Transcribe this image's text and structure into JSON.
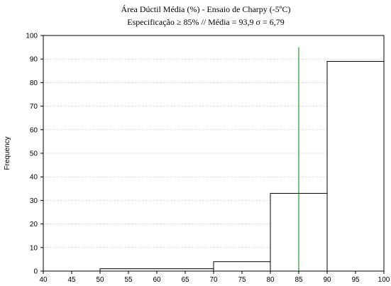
{
  "chart_data": {
    "type": "bar",
    "title": "Área Dúctil Média (%) - Ensaio de Charpy (-5ºC)",
    "subtitle": "Especificação ≥ 85% // Média = 93,9   σ = 6,79",
    "xlabel": "",
    "ylabel": "Frequency",
    "xlim": [
      40,
      100
    ],
    "ylim": [
      0,
      100
    ],
    "xticks": [
      40,
      45,
      50,
      55,
      60,
      65,
      70,
      75,
      80,
      85,
      90,
      95,
      100
    ],
    "yticks": [
      0,
      10,
      20,
      30,
      40,
      50,
      60,
      70,
      80,
      90,
      100
    ],
    "grid": true,
    "bins": [
      {
        "x0": 40,
        "x1": 50,
        "value": 0
      },
      {
        "x0": 50,
        "x1": 70,
        "value": 1
      },
      {
        "x0": 70,
        "x1": 80,
        "value": 4
      },
      {
        "x0": 80,
        "x1": 90,
        "value": 33
      },
      {
        "x0": 90,
        "x1": 100,
        "value": 89
      }
    ],
    "reference_line": {
      "x": 85,
      "y_top": 95,
      "color": "#008000"
    }
  }
}
